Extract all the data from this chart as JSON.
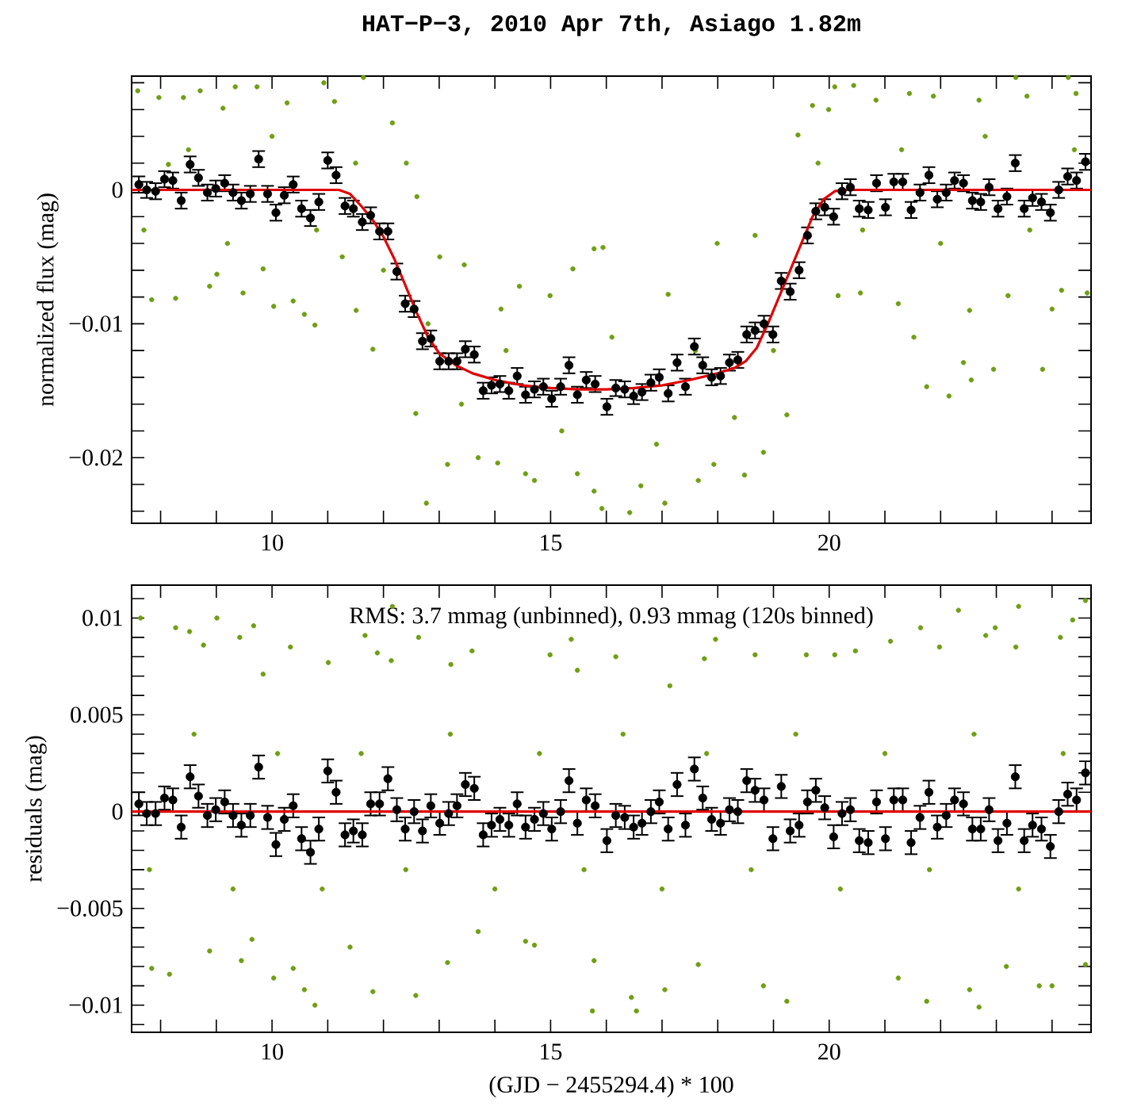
{
  "chart_data": [
    {
      "type": "scatter",
      "title": "HAT−P−3, 2010 Apr 7th, Asiago 1.82m",
      "ylabel": "normalized flux (mag)",
      "xlim": [
        7.48,
        24.7
      ],
      "ylim": [
        -0.0249,
        0.0085
      ],
      "xticks": [
        {
          "value": 8,
          "label": null
        },
        {
          "value": 9,
          "label": null
        },
        10,
        {
          "value": 11,
          "label": null
        },
        {
          "value": 12,
          "label": null
        },
        {
          "value": 13,
          "label": null
        },
        {
          "value": 14,
          "label": null
        },
        15,
        {
          "value": 16,
          "label": null
        },
        {
          "value": 17,
          "label": null
        },
        {
          "value": 18,
          "label": null
        },
        {
          "value": 19,
          "label": null
        },
        20,
        {
          "value": 21,
          "label": null
        },
        {
          "value": 22,
          "label": null
        },
        {
          "value": 23,
          "label": null
        },
        {
          "value": 24,
          "label": null
        }
      ],
      "yticks": [
        {
          "value": -0.024,
          "label": null
        },
        {
          "value": -0.022,
          "label": null
        },
        {
          "value": -0.02,
          "label": "−0.02"
        },
        {
          "value": -0.018,
          "label": null
        },
        {
          "value": -0.016,
          "label": null
        },
        {
          "value": -0.014,
          "label": null
        },
        {
          "value": -0.012,
          "label": null
        },
        {
          "value": -0.01,
          "label": "−0.01"
        },
        {
          "value": -0.008,
          "label": null
        },
        {
          "value": -0.006,
          "label": null
        },
        {
          "value": -0.004,
          "label": null
        },
        {
          "value": -0.002,
          "label": null
        },
        0,
        {
          "value": 0.002,
          "label": null
        },
        {
          "value": 0.004,
          "label": null
        },
        {
          "value": 0.006,
          "label": null
        },
        {
          "value": 0.008,
          "label": null
        }
      ],
      "series": [
        {
          "marker": "circle",
          "color": "#6f9e14",
          "x": [
            7.59,
            7.84,
            7.97,
            8.14,
            8.27,
            8.41,
            8.71,
            8.88,
            9.01,
            9.12,
            9.34,
            9.48,
            9.73,
            9.84,
            10.03,
            10.27,
            10.38,
            10.58,
            10.77,
            10.93,
            11.12,
            11.26,
            11.51,
            11.64,
            11.81,
            12.16,
            12.41,
            12.6,
            12.77,
            12.58,
            13.01,
            13.15,
            13.45,
            13.7,
            14.05,
            14.11,
            14.44,
            14.55,
            14.71,
            14.99,
            15.4,
            15.48,
            15.78,
            15.78,
            15.92,
            15.94,
            16.42,
            16.62,
            17.05,
            17.11,
            17.65,
            17.93,
            17.99,
            18.48,
            18.67,
            18.82,
            19.24,
            19.44,
            19.7,
            19.99,
            20.1,
            20.16,
            20.44,
            20.56,
            20.84,
            21.24,
            21.44,
            21.52,
            21.75,
            21.87,
            22.15,
            22.41,
            22.52,
            22.55,
            22.69,
            22.95,
            23.21,
            23.35,
            23.55,
            23.83,
            24.0,
            24.17,
            24.29,
            24.43,
            24.63,
            7.7,
            8.5,
            9.2,
            10.0,
            10.8,
            11.5,
            12.0,
            12.8,
            13.4,
            14.2,
            15.2,
            16.1,
            16.9,
            17.6,
            18.3,
            19.0,
            19.8,
            20.6,
            21.3,
            22.0,
            22.8,
            23.6,
            24.4
          ],
          "values": [
            0.0074,
            -0.0082,
            0.0069,
            0.0019,
            -0.0081,
            0.0069,
            0.0074,
            -0.0072,
            -0.0063,
            0.0061,
            0.0077,
            -0.0077,
            0.0077,
            -0.0059,
            -0.0087,
            0.0065,
            -0.0083,
            -0.0093,
            -0.0101,
            0.008,
            0.0066,
            -0.005,
            -0.009,
            0.0084,
            -0.0119,
            0.005,
            0.002,
            -0.0005,
            -0.0234,
            -0.0167,
            -0.005,
            -0.0205,
            -0.0056,
            -0.02,
            -0.0204,
            -0.0089,
            -0.0072,
            -0.0212,
            -0.0217,
            -0.0079,
            -0.0059,
            -0.0212,
            -0.0225,
            -0.0044,
            -0.0238,
            -0.0043,
            -0.0241,
            -0.0221,
            -0.0234,
            -0.0078,
            -0.0217,
            -0.0205,
            -0.004,
            -0.0213,
            -0.0034,
            -0.0196,
            -0.0168,
            0.0041,
            0.0063,
            0.006,
            0.0077,
            -0.0079,
            0.0078,
            -0.0077,
            0.0067,
            -0.0085,
            0.0072,
            -0.011,
            -0.0147,
            0.007,
            -0.0154,
            -0.0129,
            -0.009,
            -0.0142,
            0.0067,
            -0.0134,
            -0.0079,
            0.0084,
            0.007,
            -0.0134,
            -0.0089,
            -0.0075,
            0.0084,
            0.0072,
            -0.0077,
            -0.003,
            0.003,
            -0.004,
            0.004,
            -0.003,
            0.002,
            -0.006,
            -0.01,
            -0.016,
            -0.012,
            -0.018,
            -0.011,
            -0.019,
            -0.012,
            -0.017,
            -0.012,
            0.002,
            -0.003,
            0.003,
            -0.004,
            0.004,
            -0.003,
            0.003
          ]
        },
        {
          "marker": "circle",
          "color": "#000000",
          "x": [
            7.61,
            7.75,
            7.91,
            8.07,
            8.22,
            8.37,
            8.53,
            8.68,
            8.84,
            8.99,
            9.15,
            9.3,
            9.45,
            9.61,
            9.76,
            9.92,
            10.07,
            10.22,
            10.38,
            10.53,
            10.69,
            10.84,
            11.0,
            11.15,
            11.31,
            11.46,
            11.62,
            11.77,
            11.93,
            12.08,
            12.24,
            12.39,
            12.55,
            12.7,
            12.85,
            13.01,
            13.17,
            13.32,
            13.47,
            13.63,
            13.79,
            13.94,
            14.09,
            14.25,
            14.4,
            14.55,
            14.71,
            14.87,
            15.02,
            15.18,
            15.33,
            15.48,
            15.64,
            15.8,
            16.01,
            16.17,
            16.33,
            16.49,
            16.64,
            16.8,
            16.95,
            17.11,
            17.27,
            17.42,
            17.58,
            17.73,
            17.89,
            18.05,
            18.21,
            18.36,
            18.52,
            18.67,
            18.83,
            18.99,
            19.14,
            19.3,
            19.46,
            19.61,
            19.76,
            19.92,
            20.08,
            20.23,
            20.38,
            20.54,
            20.7,
            20.85,
            21.01,
            21.16,
            21.32,
            21.47,
            21.63,
            21.79,
            21.94,
            22.1,
            22.25,
            22.41,
            22.57,
            22.72,
            22.87,
            23.03,
            23.19,
            23.34,
            23.5,
            23.65,
            23.81,
            23.97,
            24.12,
            24.28,
            24.44,
            24.6
          ],
          "values": [
            0.0004,
            0.0,
            -0.0001,
            0.0008,
            0.0007,
            -0.0008,
            0.0019,
            0.0009,
            -0.0002,
            0.0001,
            0.0005,
            -0.0002,
            -0.0008,
            -0.0003,
            0.0023,
            -0.0003,
            -0.0017,
            -0.0004,
            0.0004,
            -0.0014,
            -0.0021,
            -0.0009,
            0.0022,
            0.0011,
            -0.0012,
            -0.0014,
            -0.0024,
            -0.0019,
            -0.0031,
            -0.0031,
            -0.0061,
            -0.0085,
            -0.0089,
            -0.0113,
            -0.0111,
            -0.0128,
            -0.0128,
            -0.0128,
            -0.0119,
            -0.0123,
            -0.015,
            -0.0146,
            -0.0145,
            -0.015,
            -0.0139,
            -0.0153,
            -0.0149,
            -0.0147,
            -0.0156,
            -0.0147,
            -0.0131,
            -0.0153,
            -0.0142,
            -0.0145,
            -0.0162,
            -0.0148,
            -0.0149,
            -0.0154,
            -0.0151,
            -0.0144,
            -0.014,
            -0.0152,
            -0.0129,
            -0.0147,
            -0.0117,
            -0.0131,
            -0.014,
            -0.0139,
            -0.0129,
            -0.0127,
            -0.0108,
            -0.0105,
            -0.01,
            -0.0108,
            -0.0068,
            -0.0076,
            -0.006,
            -0.0034,
            -0.0016,
            -0.0013,
            -0.002,
            -0.0001,
            0.0002,
            -0.0014,
            -0.0015,
            0.0005,
            -0.0013,
            0.0006,
            0.0006,
            -0.0015,
            -0.0002,
            0.0011,
            -0.0007,
            -0.0002,
            0.0007,
            0.0005,
            -0.0008,
            -0.0009,
            0.0002,
            -0.0014,
            -0.0005,
            0.002,
            -0.0014,
            -0.0006,
            -0.0009,
            -0.0017,
            0.0,
            0.001,
            0.0007,
            0.0021
          ],
          "errors": [
            0.0006,
            0.0006,
            0.0006,
            0.0006,
            0.0006,
            0.0006,
            0.0006,
            0.0006,
            0.0006,
            0.0006,
            0.0006,
            0.0006,
            0.0006,
            0.0006,
            0.0006,
            0.0006,
            0.0006,
            0.0006,
            0.0006,
            0.0006,
            0.0006,
            0.0006,
            0.0006,
            0.0006,
            0.0006,
            0.0006,
            0.0006,
            0.0006,
            0.0006,
            0.0006,
            0.0006,
            0.0006,
            0.0006,
            0.0006,
            0.0006,
            0.0006,
            0.0006,
            0.0006,
            0.0006,
            0.0006,
            0.0006,
            0.0006,
            0.0006,
            0.0006,
            0.0006,
            0.0006,
            0.0006,
            0.0006,
            0.0006,
            0.0006,
            0.0006,
            0.0006,
            0.0006,
            0.0006,
            0.0006,
            0.0006,
            0.0006,
            0.0006,
            0.0006,
            0.0006,
            0.0006,
            0.0006,
            0.0006,
            0.0006,
            0.0006,
            0.0006,
            0.0006,
            0.0006,
            0.0006,
            0.0006,
            0.0006,
            0.0006,
            0.0006,
            0.0006,
            0.0006,
            0.0006,
            0.0006,
            0.0006,
            0.0006,
            0.0006,
            0.0006,
            0.0006,
            0.0006,
            0.0006,
            0.0006,
            0.0006,
            0.0006,
            0.0006,
            0.0006,
            0.0006,
            0.0006,
            0.0006,
            0.0006,
            0.0006,
            0.0006,
            0.0006,
            0.0006,
            0.0006,
            0.0006,
            0.0006,
            0.0006,
            0.0006,
            0.0006,
            0.0006,
            0.0006,
            0.0006,
            0.0006,
            0.0006,
            0.0006,
            0.0006
          ]
        },
        {
          "type": "line",
          "marker": "none",
          "color": "#e00000",
          "x": [
            7.48,
            11.2,
            11.4,
            11.6,
            11.8,
            12.0,
            12.2,
            12.4,
            12.6,
            12.8,
            13.0,
            13.3,
            13.6,
            14.0,
            14.5,
            15.0,
            15.5,
            16.0,
            16.5,
            17.0,
            17.5,
            18.0,
            18.3,
            18.5,
            18.7,
            18.9,
            19.1,
            19.3,
            19.5,
            19.7,
            19.9,
            20.1,
            20.25,
            24.7
          ],
          "values": [
            0,
            0,
            -0.0003,
            -0.0012,
            -0.0022,
            -0.0035,
            -0.0052,
            -0.0072,
            -0.0092,
            -0.011,
            -0.0122,
            -0.0131,
            -0.0137,
            -0.0142,
            -0.0146,
            -0.0148,
            -0.0149,
            -0.0149,
            -0.0148,
            -0.0146,
            -0.0142,
            -0.0137,
            -0.0133,
            -0.0128,
            -0.0118,
            -0.01,
            -0.008,
            -0.006,
            -0.004,
            -0.002,
            -0.0007,
            -0.0001,
            0,
            0
          ]
        }
      ]
    },
    {
      "type": "scatter",
      "xlabel": "(GJD − 2455294.4) * 100",
      "ylabel": "residuals (mag)",
      "annotations": [
        "RMS: 3.7 mmag (unbinned), 0.93 mmag (120s binned)"
      ],
      "xlim": [
        7.48,
        24.7
      ],
      "ylim": [
        -0.0114,
        0.0117
      ],
      "xticks": [
        {
          "value": 8,
          "label": null
        },
        {
          "value": 9,
          "label": null
        },
        10,
        {
          "value": 11,
          "label": null
        },
        {
          "value": 12,
          "label": null
        },
        {
          "value": 13,
          "label": null
        },
        {
          "value": 14,
          "label": null
        },
        15,
        {
          "value": 16,
          "label": null
        },
        {
          "value": 17,
          "label": null
        },
        {
          "value": 18,
          "label": null
        },
        {
          "value": 19,
          "label": null
        },
        20,
        {
          "value": 21,
          "label": null
        },
        {
          "value": 22,
          "label": null
        },
        {
          "value": 23,
          "label": null
        },
        {
          "value": 24,
          "label": null
        }
      ],
      "yticks": [
        {
          "value": -0.011,
          "label": null
        },
        {
          "value": -0.01,
          "label": "−0.01"
        },
        {
          "value": -0.009,
          "label": null
        },
        {
          "value": -0.008,
          "label": null
        },
        {
          "value": -0.007,
          "label": null
        },
        {
          "value": -0.006,
          "label": null
        },
        {
          "value": -0.005,
          "label": "−0.005"
        },
        {
          "value": -0.004,
          "label": null
        },
        {
          "value": -0.003,
          "label": null
        },
        {
          "value": -0.002,
          "label": null
        },
        {
          "value": -0.001,
          "label": null
        },
        0,
        {
          "value": 0.001,
          "label": null
        },
        {
          "value": 0.002,
          "label": null
        },
        {
          "value": 0.003,
          "label": null
        },
        {
          "value": 0.004,
          "label": null
        },
        0.005,
        {
          "value": 0.006,
          "label": null
        },
        {
          "value": 0.007,
          "label": null
        },
        {
          "value": 0.008,
          "label": null
        },
        {
          "value": 0.009,
          "label": null
        },
        0.01,
        {
          "value": 0.011,
          "label": null
        }
      ],
      "series": [
        {
          "marker": "circle",
          "color": "#6f9e14",
          "x": [
            7.64,
            7.84,
            8.16,
            8.27,
            8.52,
            8.77,
            8.88,
            9.01,
            9.42,
            9.45,
            9.67,
            9.64,
            9.84,
            10.03,
            10.33,
            10.38,
            10.58,
            10.77,
            11.01,
            11.4,
            11.67,
            11.81,
            11.89,
            12.16,
            12.14,
            12.58,
            12.63,
            13.15,
            13.21,
            13.59,
            13.7,
            14.55,
            14.71,
            14.99,
            15.37,
            15.48,
            15.78,
            15.75,
            16.17,
            16.45,
            16.54,
            17.05,
            17.14,
            17.65,
            17.76,
            17.96,
            18.67,
            18.82,
            19.24,
            19.59,
            20.1,
            20.47,
            21.24,
            21.1,
            21.64,
            21.75,
            21.98,
            22.32,
            22.52,
            22.69,
            22.81,
            22.98,
            23.18,
            23.35,
            23.4,
            23.77,
            24.0,
            24.15,
            24.37,
            24.6,
            24.6,
            7.8,
            8.6,
            9.3,
            10.1,
            10.9,
            11.6,
            12.4,
            13.2,
            14.0,
            14.8,
            15.6,
            16.3,
            17.0,
            17.8,
            18.6,
            19.4,
            20.2,
            21.0,
            21.8,
            22.6,
            23.4,
            24.2
          ],
          "values": [
            0.01,
            -0.0081,
            -0.0084,
            0.0095,
            0.0093,
            0.0086,
            -0.0072,
            0.01,
            0.009,
            -0.0077,
            0.0096,
            -0.0066,
            0.0071,
            -0.0086,
            0.0085,
            -0.0081,
            -0.0092,
            -0.01,
            0.0077,
            -0.007,
            0.0091,
            -0.0093,
            0.0082,
            0.0106,
            0.0078,
            -0.0095,
            0.009,
            -0.0078,
            0.0076,
            0.0083,
            -0.0062,
            -0.0067,
            -0.0069,
            0.0081,
            0.0089,
            0.0073,
            -0.0077,
            -0.0103,
            0.008,
            -0.0096,
            -0.0103,
            -0.0092,
            0.0065,
            -0.0079,
            0.0079,
            0.0089,
            0.0081,
            -0.009,
            -0.0098,
            0.0081,
            0.0081,
            0.0083,
            -0.0086,
            0.0088,
            0.0095,
            -0.0098,
            0.0085,
            0.0104,
            -0.0092,
            -0.0101,
            0.0091,
            0.0095,
            -0.008,
            0.0085,
            0.0106,
            -0.009,
            -0.009,
            0.009,
            0.0099,
            0.0109,
            -0.0079,
            -0.003,
            0.004,
            -0.004,
            0.003,
            -0.004,
            0.003,
            -0.003,
            0.004,
            -0.004,
            0.003,
            -0.003,
            0.004,
            -0.004,
            0.003,
            -0.003,
            0.004,
            -0.004,
            0.003,
            -0.003,
            0.004,
            -0.004,
            0.003
          ]
        },
        {
          "marker": "circle",
          "color": "#000000",
          "x": [
            7.61,
            7.75,
            7.91,
            8.07,
            8.22,
            8.37,
            8.53,
            8.68,
            8.84,
            8.99,
            9.15,
            9.3,
            9.45,
            9.61,
            9.76,
            9.92,
            10.07,
            10.22,
            10.38,
            10.53,
            10.69,
            10.84,
            11.0,
            11.15,
            11.31,
            11.46,
            11.62,
            11.77,
            11.93,
            12.08,
            12.24,
            12.39,
            12.55,
            12.7,
            12.85,
            13.01,
            13.17,
            13.32,
            13.47,
            13.63,
            13.79,
            13.94,
            14.09,
            14.25,
            14.4,
            14.55,
            14.71,
            14.87,
            15.02,
            15.18,
            15.33,
            15.48,
            15.64,
            15.8,
            16.01,
            16.17,
            16.33,
            16.49,
            16.64,
            16.8,
            16.95,
            17.11,
            17.27,
            17.42,
            17.58,
            17.73,
            17.89,
            18.05,
            18.21,
            18.36,
            18.52,
            18.67,
            18.83,
            18.99,
            19.14,
            19.3,
            19.46,
            19.61,
            19.76,
            19.92,
            20.08,
            20.23,
            20.38,
            20.54,
            20.7,
            20.85,
            21.01,
            21.16,
            21.32,
            21.47,
            21.63,
            21.79,
            21.94,
            22.1,
            22.25,
            22.41,
            22.57,
            22.72,
            22.87,
            23.03,
            23.19,
            23.34,
            23.5,
            23.65,
            23.81,
            23.97,
            24.12,
            24.28,
            24.44,
            24.6
          ],
          "values": [
            0.0004,
            -0.0001,
            -0.0001,
            0.0007,
            0.0006,
            -0.0008,
            0.0018,
            0.0008,
            -0.0002,
            0.0001,
            0.0005,
            -0.0002,
            -0.0007,
            -0.0002,
            0.0023,
            -0.0003,
            -0.0017,
            -0.0004,
            0.0003,
            -0.0014,
            -0.0021,
            -0.0009,
            0.0021,
            0.001,
            -0.0012,
            -0.001,
            -0.0012,
            0.0004,
            0.0004,
            0.0017,
            0.0001,
            -0.0009,
            0.0,
            -0.001,
            0.0003,
            -0.0006,
            -0.0001,
            0.0003,
            0.0014,
            0.0012,
            -0.0012,
            -0.0007,
            -0.0004,
            -0.0007,
            0.0004,
            -0.0008,
            -0.0004,
            -0.0001,
            -0.0009,
            0.0,
            0.0016,
            -0.0006,
            0.0006,
            0.0003,
            -0.0015,
            -0.0002,
            -0.0003,
            -0.0008,
            -0.0006,
            0.0,
            0.0005,
            -0.0009,
            0.0014,
            -0.0007,
            0.0022,
            0.0007,
            -0.0004,
            -0.0006,
            0.0001,
            0.0,
            0.0016,
            0.0011,
            0.0006,
            -0.0014,
            0.0013,
            -0.001,
            -0.0007,
            0.0005,
            0.0011,
            0.0002,
            -0.0013,
            -0.0001,
            0.0001,
            -0.0015,
            -0.0016,
            0.0005,
            -0.0014,
            0.0006,
            0.0006,
            -0.0016,
            -0.0003,
            0.001,
            -0.0008,
            -0.0002,
            0.0006,
            0.0004,
            -0.0009,
            -0.0009,
            0.0001,
            -0.0015,
            -0.0006,
            0.0018,
            -0.0015,
            -0.0007,
            -0.0009,
            -0.0018,
            0.0,
            0.0009,
            0.0006,
            0.002
          ],
          "errors": [
            0.0006,
            0.0006,
            0.0006,
            0.0006,
            0.0006,
            0.0006,
            0.0006,
            0.0006,
            0.0006,
            0.0006,
            0.0006,
            0.0006,
            0.0006,
            0.0006,
            0.0006,
            0.0006,
            0.0006,
            0.0006,
            0.0006,
            0.0006,
            0.0006,
            0.0006,
            0.0006,
            0.0006,
            0.0006,
            0.0006,
            0.0006,
            0.0006,
            0.0006,
            0.0006,
            0.0006,
            0.0006,
            0.0006,
            0.0006,
            0.0006,
            0.0006,
            0.0006,
            0.0006,
            0.0006,
            0.0006,
            0.0006,
            0.0006,
            0.0006,
            0.0006,
            0.0006,
            0.0006,
            0.0006,
            0.0006,
            0.0006,
            0.0006,
            0.0006,
            0.0006,
            0.0006,
            0.0006,
            0.0006,
            0.0006,
            0.0006,
            0.0006,
            0.0006,
            0.0006,
            0.0006,
            0.0006,
            0.0006,
            0.0006,
            0.0006,
            0.0006,
            0.0006,
            0.0006,
            0.0006,
            0.0006,
            0.0006,
            0.0006,
            0.0006,
            0.0006,
            0.0006,
            0.0006,
            0.0006,
            0.0006,
            0.0006,
            0.0006,
            0.0006,
            0.0006,
            0.0006,
            0.0006,
            0.0006,
            0.0006,
            0.0006,
            0.0006,
            0.0006,
            0.0006,
            0.0006,
            0.0006,
            0.0006,
            0.0006,
            0.0006,
            0.0006,
            0.0006,
            0.0006,
            0.0006,
            0.0006,
            0.0006,
            0.0006,
            0.0006,
            0.0006,
            0.0006,
            0.0006,
            0.0006,
            0.0006,
            0.0006,
            0.0006
          ]
        },
        {
          "type": "line",
          "marker": "none",
          "color": "#e00000",
          "x": [
            7.48,
            24.7
          ],
          "values": [
            0,
            0
          ]
        }
      ]
    }
  ]
}
